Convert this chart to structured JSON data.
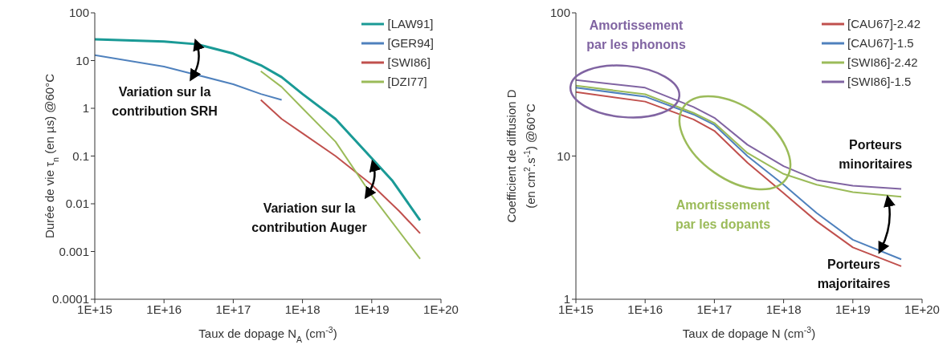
{
  "chart_data": [
    {
      "type": "line",
      "xlabel": "Taux de dopage N$_{A}$ (cm$^{-3}$)",
      "ylabel": "Durée de vie τ$_{n}$  (en µs) @60°C",
      "log": "xy",
      "grid": false,
      "legend": "top right",
      "xlim": [
        1000000000000000.0,
        1e+20
      ],
      "xticks": [
        {
          "value": 1000000000000000.0,
          "label": "1E+15"
        },
        {
          "value": 1e+16,
          "label": "1E+16"
        },
        {
          "value": 1e+17,
          "label": "1E+17"
        },
        {
          "value": 1e+18,
          "label": "1E+18"
        },
        {
          "value": 1e+19,
          "label": "1E+19"
        },
        {
          "value": 1e+20,
          "label": "1E+20"
        }
      ],
      "ylim": [
        0.0001,
        100
      ],
      "yticks": [
        0.0001,
        0.001,
        0.01,
        0.1,
        1,
        10,
        100
      ],
      "annotations": [
        "Variation sur la\ncontribution SRH",
        "Variation sur la\ncontribution Auger"
      ],
      "series": [
        {
          "name": "[LAW91]",
          "color": "#1a9a96",
          "x": [
            1000000000000000.0,
            1e+16,
            3e+16,
            1e+17,
            2.5e+17,
            5e+17,
            1e+18,
            3e+18,
            1e+19,
            2e+19,
            5e+19
          ],
          "values": [
            28,
            25,
            22,
            14,
            8,
            4.5,
            2,
            0.6,
            0.09,
            0.03,
            0.0045
          ]
        },
        {
          "name": "[GER94]",
          "color": "#4f81bd",
          "x": [
            1000000000000000.0,
            1e+16,
            3e+16,
            1e+17,
            2.5e+17,
            5e+17
          ],
          "values": [
            13,
            7.5,
            5,
            3.2,
            2,
            1.5
          ]
        },
        {
          "name": "[SWI86]",
          "color": "#c0504d",
          "x": [
            2.5e+17,
            5e+17,
            1e+18,
            3e+18,
            1e+19,
            2.5e+19,
            5e+19
          ],
          "values": [
            1.5,
            0.6,
            0.3,
            0.1,
            0.025,
            0.007,
            0.0024
          ]
        },
        {
          "name": "[DZI77]",
          "color": "#9bbb59",
          "x": [
            2.5e+17,
            5e+17,
            1e+18,
            3e+18,
            1e+19,
            5e+19
          ],
          "values": [
            6,
            2.8,
            1,
            0.2,
            0.015,
            0.0007
          ]
        }
      ]
    },
    {
      "type": "line",
      "xlabel": "Taux de dopage N (cm$^{-3}$)",
      "ylabel": "Coefficient de diffusion D\n(en cm$^{2}$.s$^{-1}$) @60°C",
      "log": "xy",
      "grid": false,
      "legend": "top right",
      "xlim": [
        1000000000000000.0,
        1e+20
      ],
      "xticks": [
        {
          "value": 1000000000000000.0,
          "label": "1E+15"
        },
        {
          "value": 1e+16,
          "label": "1E+16"
        },
        {
          "value": 1e+17,
          "label": "1E+17"
        },
        {
          "value": 1e+18,
          "label": "1E+18"
        },
        {
          "value": 1e+19,
          "label": "1E+19"
        },
        {
          "value": 1e+20,
          "label": "1E+20"
        }
      ],
      "ylim": [
        1,
        100
      ],
      "yticks": [
        1,
        10,
        100
      ],
      "annotations": [
        "Amortissement\npar les phonons",
        "Amortissement\npar les dopants",
        "Porteurs\nminoritaires",
        "Porteurs\nmajoritaires"
      ],
      "series": [
        {
          "name": "[CAU67]-2.42",
          "color": "#c0504d",
          "x": [
            1000000000000000.0,
            1e+16,
            5e+16,
            1e+17,
            3e+17,
            1e+18,
            3e+18,
            1e+19,
            5e+19
          ],
          "values": [
            28,
            24,
            18,
            15,
            9,
            5.5,
            3.5,
            2.3,
            1.7
          ]
        },
        {
          "name": "[CAU67]-1.5",
          "color": "#4f81bd",
          "x": [
            1000000000000000.0,
            1e+16,
            5e+16,
            1e+17,
            3e+17,
            1e+18,
            3e+18,
            1e+19,
            5e+19
          ],
          "values": [
            30,
            26,
            19.5,
            16.5,
            10,
            6.3,
            4,
            2.6,
            1.9
          ]
        },
        {
          "name": "[SWI86]-2.42",
          "color": "#9bbb59",
          "x": [
            1000000000000000.0,
            1e+16,
            5e+16,
            1e+17,
            3e+17,
            1e+18,
            3e+18,
            1e+19,
            5e+19
          ],
          "values": [
            31,
            27,
            20,
            17,
            10.5,
            7.5,
            6.3,
            5.6,
            5.2
          ]
        },
        {
          "name": "[SWI86]-1.5",
          "color": "#8064a2",
          "x": [
            1000000000000000.0,
            1e+16,
            5e+16,
            1e+17,
            3e+17,
            1e+18,
            3e+18,
            1e+19,
            5e+19
          ],
          "values": [
            34,
            30,
            22,
            18.5,
            12,
            8.5,
            6.8,
            6.2,
            5.9
          ]
        }
      ]
    }
  ]
}
